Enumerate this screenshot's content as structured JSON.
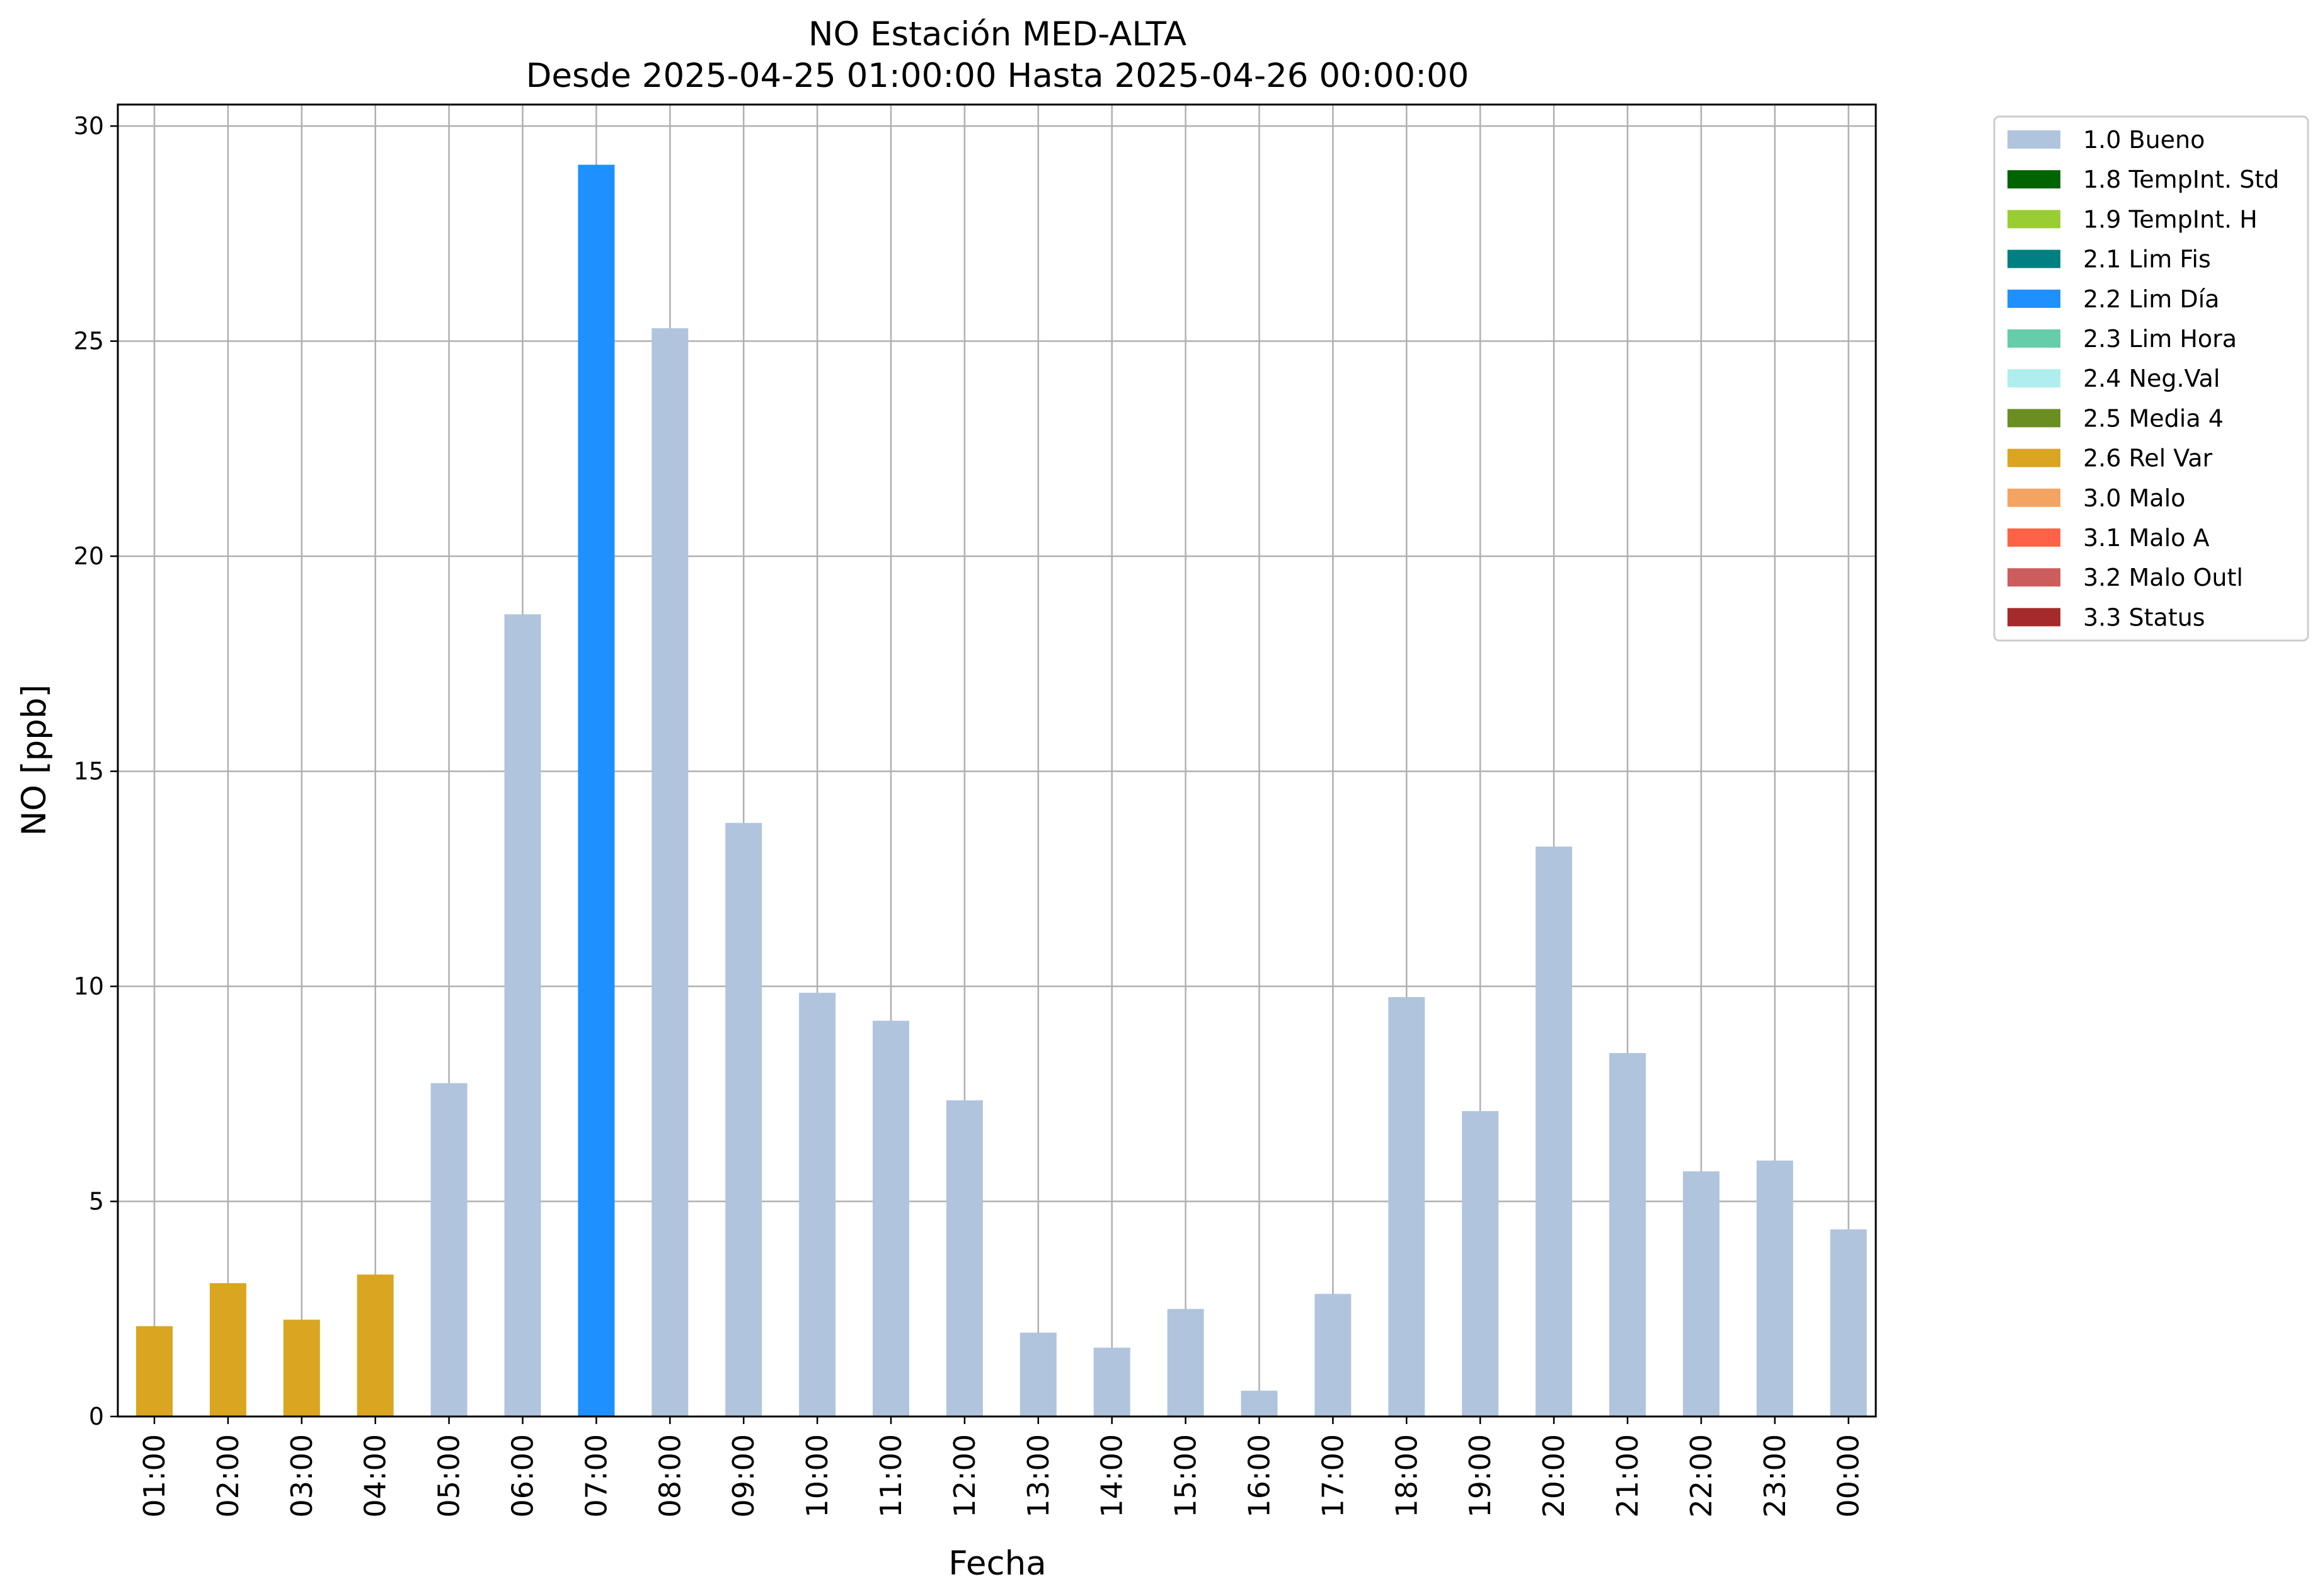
{
  "chart_data": {
    "type": "bar",
    "title": "NO Estación MED-ALTA",
    "subtitle": "Desde 2025-04-25 01:00:00 Hasta 2025-04-26 00:00:00",
    "xlabel": "Fecha",
    "ylabel": "NO [ppb]",
    "ylim": [
      0,
      30.5
    ],
    "yticks": [
      0,
      5,
      10,
      15,
      20,
      25,
      30
    ],
    "grid": true,
    "legend_position": "outside-right-top",
    "categories": [
      "01:00",
      "02:00",
      "03:00",
      "04:00",
      "05:00",
      "06:00",
      "07:00",
      "08:00",
      "09:00",
      "10:00",
      "11:00",
      "12:00",
      "13:00",
      "14:00",
      "15:00",
      "16:00",
      "17:00",
      "18:00",
      "19:00",
      "20:00",
      "21:00",
      "22:00",
      "23:00",
      "00:00"
    ],
    "values": [
      2.1,
      3.1,
      2.25,
      3.3,
      7.75,
      18.65,
      29.1,
      25.3,
      13.8,
      9.85,
      9.2,
      7.35,
      1.95,
      1.6,
      2.5,
      0.6,
      2.85,
      9.75,
      7.1,
      13.25,
      8.45,
      5.7,
      5.95,
      4.35
    ],
    "flags": [
      "2.6 Rel Var",
      "2.6 Rel Var",
      "2.6 Rel Var",
      "2.6 Rel Var",
      "1.0 Bueno",
      "1.0 Bueno",
      "2.2 Lim Día",
      "1.0 Bueno",
      "1.0 Bueno",
      "1.0 Bueno",
      "1.0 Bueno",
      "1.0 Bueno",
      "1.0 Bueno",
      "1.0 Bueno",
      "1.0 Bueno",
      "1.0 Bueno",
      "1.0 Bueno",
      "1.0 Bueno",
      "1.0 Bueno",
      "1.0 Bueno",
      "1.0 Bueno",
      "1.0 Bueno",
      "1.0 Bueno",
      "1.0 Bueno"
    ],
    "legend": [
      {
        "label": "1.0 Bueno",
        "color": "#b0c4de"
      },
      {
        "label": "1.8 TempInt. Std",
        "color": "#006400"
      },
      {
        "label": "1.9 TempInt. H",
        "color": "#9acd32"
      },
      {
        "label": "2.1 Lim Fis",
        "color": "#008080"
      },
      {
        "label": "2.2 Lim Día",
        "color": "#1e90ff"
      },
      {
        "label": "2.3 Lim Hora",
        "color": "#66cdaa"
      },
      {
        "label": "2.4 Neg.Val",
        "color": "#afeeee"
      },
      {
        "label": "2.5 Media 4",
        "color": "#6b8e23"
      },
      {
        "label": "2.6 Rel Var",
        "color": "#daa520"
      },
      {
        "label": "3.0 Malo",
        "color": "#f4a460"
      },
      {
        "label": "3.1 Malo A",
        "color": "#ff6347"
      },
      {
        "label": "3.2 Malo Outl",
        "color": "#cd5c5c"
      },
      {
        "label": "3.3 Status",
        "color": "#a52a2a"
      }
    ]
  }
}
